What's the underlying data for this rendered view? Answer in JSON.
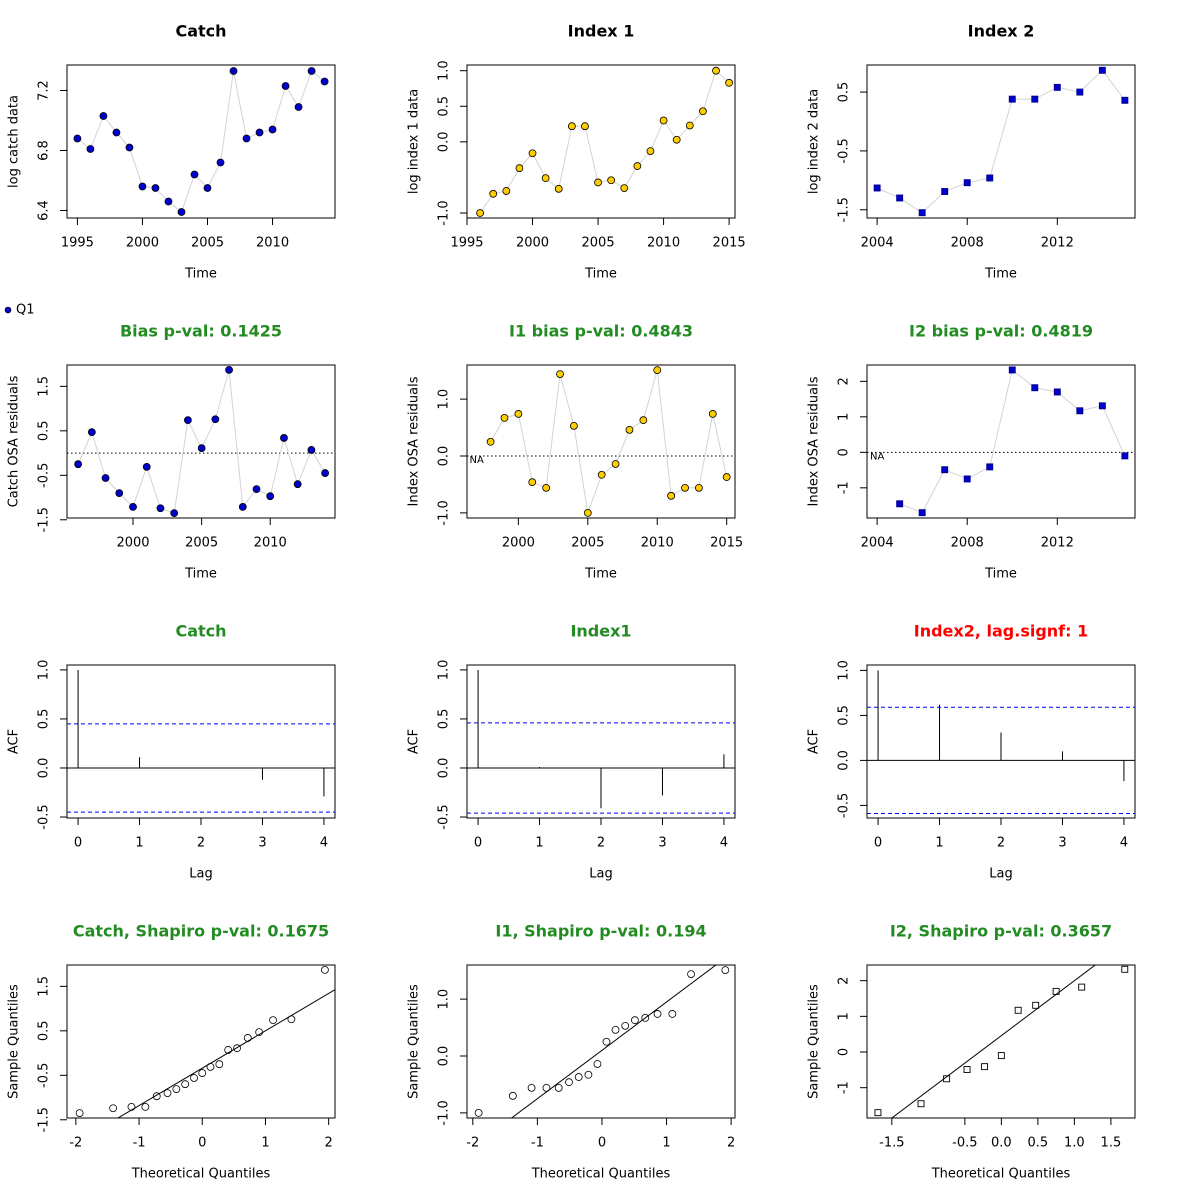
{
  "chart_data": [
    {
      "type": "line",
      "title": "Catch",
      "xlabel": "Time",
      "ylabel": "log catch data",
      "x": [
        1995,
        1996,
        1997,
        1998,
        1999,
        2000,
        2001,
        2002,
        2003,
        2004,
        2005,
        2006,
        2007,
        2008,
        2009,
        2010,
        2011,
        2012,
        2013,
        2014
      ],
      "series": [
        {
          "name": "Q1",
          "color": "#0000cd",
          "line_color": "#d3d3d3",
          "marker": "circle",
          "values": [
            6.88,
            6.81,
            7.03,
            6.92,
            6.82,
            6.56,
            6.55,
            6.46,
            6.39,
            6.64,
            6.55,
            6.72,
            7.33,
            6.88,
            6.92,
            6.94,
            7.23,
            7.09,
            7.33,
            7.26
          ]
        }
      ],
      "xlim": [
        1994.2,
        2014.8
      ],
      "ylim": [
        6.35,
        7.37
      ],
      "xticks": [
        1995,
        2000,
        2005,
        2010
      ],
      "yticks": [
        6.4,
        6.8,
        7.2
      ]
    },
    {
      "type": "line",
      "title": "Index 1",
      "xlabel": "Time",
      "ylabel": "log index 1 data",
      "x": [
        1996,
        1997,
        1998,
        1999,
        2000,
        2001,
        2002,
        2003,
        2004,
        2005,
        2006,
        2007,
        2008,
        2009,
        2010,
        2011,
        2012,
        2013,
        2014,
        2015
      ],
      "series": [
        {
          "color": "#ffcc00",
          "line_color": "#d3d3d3",
          "marker": "circle",
          "values": [
            -1.0,
            -0.73,
            -0.69,
            -0.37,
            -0.16,
            -0.51,
            -0.66,
            0.22,
            0.22,
            -0.57,
            -0.54,
            -0.65,
            -0.34,
            -0.13,
            0.3,
            0.03,
            0.23,
            0.43,
            1.0,
            0.83
          ]
        }
      ],
      "xlim": [
        1995,
        2015.45
      ],
      "ylim": [
        -1.07,
        1.08
      ],
      "xticks": [
        1995,
        2000,
        2005,
        2010,
        2015
      ],
      "yticks": [
        {
          "value": -1,
          "label": "-1.0"
        },
        {
          "value": 0,
          "label": "0.0"
        },
        0.5,
        {
          "value": 1,
          "label": "1.0"
        }
      ]
    },
    {
      "type": "line",
      "title": "Index 2",
      "xlabel": "Time",
      "ylabel": "log index 2 data",
      "x": [
        2004,
        2005,
        2006,
        2007,
        2008,
        2009,
        2010,
        2011,
        2012,
        2013,
        2014,
        2015
      ],
      "series": [
        {
          "color": "#0000cd",
          "line_color": "#d3d3d3",
          "marker": "square",
          "values": [
            -1.13,
            -1.3,
            -1.55,
            -1.19,
            -1.04,
            -0.96,
            0.38,
            0.38,
            0.58,
            0.5,
            0.87,
            0.36
          ]
        }
      ],
      "xlim": [
        2003.55,
        2015.45
      ],
      "ylim": [
        -1.64,
        0.96
      ],
      "xticks": [
        2004,
        2008,
        2012
      ],
      "yticks": [
        -1.5,
        -0.5,
        0.5
      ]
    },
    {
      "type": "line",
      "title": "Bias p-val: 0.1425",
      "title_color": "#228b22",
      "xlabel": "Time",
      "ylabel": "Catch OSA residuals",
      "x": [
        1996,
        1997,
        1998,
        1999,
        2000,
        2001,
        2002,
        2003,
        2004,
        2005,
        2006,
        2007,
        2008,
        2009,
        2010,
        2011,
        2012,
        2013,
        2014
      ],
      "series": [
        {
          "color": "#0000cd",
          "line_color": "#d3d3d3",
          "marker": "circle",
          "values": [
            -0.25,
            0.47,
            -0.56,
            -0.9,
            -1.21,
            -0.31,
            -1.24,
            -1.35,
            0.74,
            0.11,
            0.76,
            1.87,
            -1.21,
            -0.81,
            -0.97,
            0.34,
            -0.7,
            0.07,
            -0.45
          ]
        }
      ],
      "hline": 0,
      "xlim": [
        1995.19,
        2014.72
      ],
      "ylim": [
        -1.46,
        1.98
      ],
      "xticks": [
        2000,
        2005,
        2010
      ],
      "yticks": [
        -1.5,
        -0.5,
        0.5,
        1.5
      ]
    },
    {
      "type": "line",
      "title": "I1 bias p-val: 0.4843",
      "title_color": "#228b22",
      "xlabel": "Time",
      "ylabel": "Index OSA residuals",
      "x": [
        1997,
        1998,
        1999,
        2000,
        2001,
        2002,
        2003,
        2004,
        2005,
        2006,
        2007,
        2008,
        2009,
        2010,
        2011,
        2012,
        2013,
        2014,
        2015
      ],
      "series": [
        {
          "color": "#ffcc00",
          "line_color": "#d3d3d3",
          "marker": "circle",
          "values": [
            null,
            0.25,
            0.67,
            0.74,
            -0.46,
            -0.56,
            1.44,
            0.53,
            -1.0,
            -0.33,
            -0.14,
            0.46,
            0.63,
            1.51,
            -0.7,
            -0.56,
            -0.56,
            0.74,
            -0.37
          ]
        }
      ],
      "hline": 0,
      "na_label": "NA",
      "xlim": [
        1996.3,
        2015.6
      ],
      "ylim": [
        -1.09,
        1.6
      ],
      "xticks": [
        2000,
        2005,
        2010,
        2015
      ],
      "yticks": [
        {
          "value": -1,
          "label": "-1.0"
        },
        {
          "value": 0,
          "label": "0.0"
        },
        {
          "value": 1,
          "label": "1.0"
        }
      ]
    },
    {
      "type": "line",
      "title": "I2 bias p-val: 0.4819",
      "title_color": "#228b22",
      "xlabel": "Time",
      "ylabel": "Index OSA residuals",
      "x": [
        2004,
        2005,
        2006,
        2007,
        2008,
        2009,
        2010,
        2011,
        2012,
        2013,
        2014,
        2015
      ],
      "series": [
        {
          "color": "#0000cd",
          "line_color": "#d3d3d3",
          "marker": "square",
          "values": [
            null,
            -1.45,
            -1.7,
            -0.49,
            -0.75,
            -0.41,
            2.32,
            1.82,
            1.7,
            1.17,
            1.31,
            -0.1
          ]
        }
      ],
      "hline": 0,
      "na_label": "NA",
      "xlim": [
        2003.55,
        2015.45
      ],
      "ylim": [
        -1.85,
        2.46
      ],
      "xticks": [
        2004,
        2008,
        2012
      ],
      "yticks": [
        -1,
        0,
        1,
        2
      ]
    },
    {
      "type": "acf",
      "title": "Catch",
      "title_color": "#228b22",
      "xlabel": "Lag",
      "ylabel": "ACF",
      "color": "#000000",
      "x": [
        0,
        1,
        2,
        3,
        4
      ],
      "values": [
        1.0,
        0.11,
        0.0,
        -0.12,
        -0.29
      ],
      "ci": [
        0.45,
        -0.45
      ],
      "ci_color": "#0000ff",
      "xlim": [
        -0.18,
        4.18
      ],
      "ylim": [
        -0.51,
        1.05
      ],
      "xticks": [
        0,
        1,
        2,
        3,
        4
      ],
      "yticks": [
        -0.5,
        {
          "value": 0,
          "label": "0.0"
        },
        0.5,
        {
          "value": 1,
          "label": "1.0"
        }
      ]
    },
    {
      "type": "acf",
      "title": "Index1",
      "title_color": "#228b22",
      "xlabel": "Lag",
      "ylabel": "ACF",
      "color": "#000000",
      "x": [
        0,
        1,
        2,
        3,
        4
      ],
      "values": [
        1.0,
        0.01,
        -0.41,
        -0.28,
        0.14
      ],
      "ci": [
        0.46,
        -0.46
      ],
      "ci_color": "#0000ff",
      "xlim": [
        -0.18,
        4.18
      ],
      "ylim": [
        -0.51,
        1.05
      ],
      "xticks": [
        0,
        1,
        2,
        3,
        4
      ],
      "yticks": [
        -0.5,
        {
          "value": 0,
          "label": "0.0"
        },
        0.5,
        {
          "value": 1,
          "label": "1.0"
        }
      ]
    },
    {
      "type": "acf",
      "title": "Index2, lag.signf: 1",
      "title_color": "#ff0000",
      "xlabel": "Lag",
      "ylabel": "ACF",
      "color": "#000000",
      "x": [
        0,
        1,
        2,
        3,
        4
      ],
      "values": [
        1.0,
        0.62,
        0.31,
        0.1,
        -0.23
      ],
      "ci": [
        0.59,
        -0.59
      ],
      "ci_color": "#0000ff",
      "xlim": [
        -0.18,
        4.18
      ],
      "ylim": [
        -0.64,
        1.06
      ],
      "xticks": [
        0,
        1,
        2,
        3,
        4
      ],
      "yticks": [
        -0.5,
        {
          "value": 0,
          "label": "0.0"
        },
        0.5,
        {
          "value": 1,
          "label": "1.0"
        }
      ]
    },
    {
      "type": "scatter",
      "title": "Catch, Shapiro p-val: 0.1675",
      "title_color": "#228b22",
      "xlabel": "Theoretical Quantiles",
      "ylabel": "Sample Quantiles",
      "marker": "open-circle",
      "color": "#000000",
      "x": [
        -1.94,
        -1.41,
        -1.12,
        -0.9,
        -0.72,
        -0.55,
        -0.41,
        -0.27,
        -0.13,
        0,
        0.13,
        0.27,
        0.41,
        0.55,
        0.72,
        0.9,
        1.12,
        1.41,
        1.94
      ],
      "values": [
        -1.35,
        -1.24,
        -1.21,
        -1.21,
        -0.97,
        -0.9,
        -0.81,
        -0.7,
        -0.56,
        -0.45,
        -0.31,
        -0.25,
        0.07,
        0.11,
        0.34,
        0.47,
        0.74,
        0.76,
        1.87
      ],
      "line": {
        "intercept": -0.34,
        "slope": 0.84
      },
      "xlim": [
        -2.14,
        2.1
      ],
      "ylim": [
        -1.46,
        1.98
      ],
      "xticks": [
        -2,
        -1,
        0,
        1,
        2
      ],
      "yticks": [
        -1.5,
        -0.5,
        0.5,
        1.5
      ]
    },
    {
      "type": "scatter",
      "title": "I1, Shapiro p-val: 0.194",
      "title_color": "#228b22",
      "xlabel": "Theoretical Quantiles",
      "ylabel": "Sample Quantiles",
      "marker": "open-circle",
      "color": "#000000",
      "x": [
        -1.91,
        -1.38,
        -1.09,
        -0.86,
        -0.67,
        -0.51,
        -0.36,
        -0.21,
        -0.07,
        0.07,
        0.21,
        0.36,
        0.51,
        0.67,
        0.86,
        1.09,
        1.38,
        1.91
      ],
      "values": [
        -1.0,
        -0.7,
        -0.56,
        -0.56,
        -0.56,
        -0.46,
        -0.37,
        -0.33,
        -0.14,
        0.25,
        0.46,
        0.53,
        0.63,
        0.67,
        0.74,
        0.74,
        1.44,
        1.51
      ],
      "line": {
        "intercept": 0.1,
        "slope": 0.85
      },
      "xlim": [
        -2.09,
        2.06
      ],
      "ylim": [
        -1.09,
        1.6
      ],
      "xticks": [
        -2,
        -1,
        0,
        1,
        2
      ],
      "yticks": [
        {
          "value": -1,
          "label": "-1.0"
        },
        {
          "value": 0,
          "label": "0.0"
        },
        {
          "value": 1,
          "label": "1.0"
        }
      ]
    },
    {
      "type": "scatter",
      "title": "I2, Shapiro p-val: 0.3657",
      "title_color": "#228b22",
      "xlabel": "Theoretical Quantiles",
      "ylabel": "Sample Quantiles",
      "marker": "open-square",
      "color": "#000000",
      "x": [
        -1.69,
        -1.1,
        -0.75,
        -0.47,
        -0.23,
        0,
        0.23,
        0.47,
        0.75,
        1.1,
        1.69
      ],
      "values": [
        -1.7,
        -1.45,
        -0.75,
        -0.49,
        -0.41,
        -0.1,
        1.17,
        1.31,
        1.7,
        1.82,
        2.32
      ],
      "line": {
        "intercept": 0.46,
        "slope": 1.54
      },
      "xlim": [
        -1.84,
        1.83
      ],
      "ylim": [
        -1.85,
        2.44
      ],
      "xticks": [
        -1.5,
        -0.5,
        {
          "value": 0,
          "label": "0.0"
        },
        0.5,
        {
          "value": 1,
          "label": "1.0"
        },
        1.5
      ],
      "yticks": [
        -1,
        0,
        1,
        2
      ]
    }
  ]
}
